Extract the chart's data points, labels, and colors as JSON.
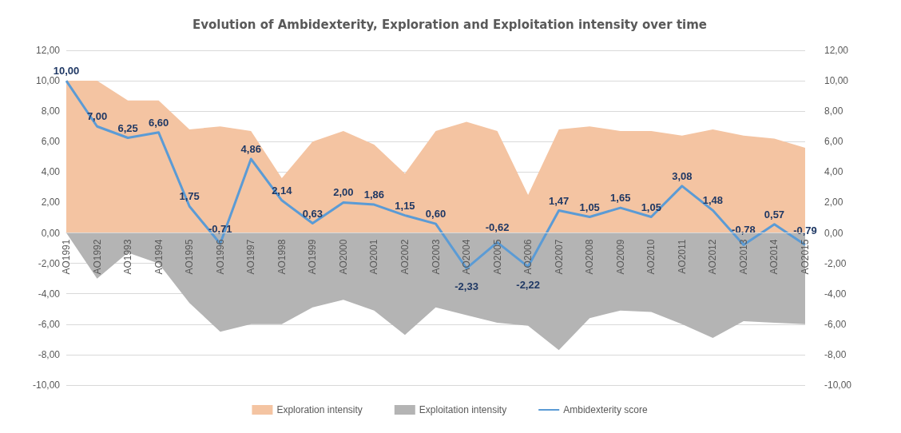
{
  "chart_data": {
    "type": "area",
    "title": "Evolution of Ambidexterity, Exploration and Exploitation intensity over time",
    "categories": [
      "AO1991",
      "AO1992",
      "AO1993",
      "AO1994",
      "AO1995",
      "AO1996",
      "AO1997",
      "AO1998",
      "AO1999",
      "AO2000",
      "AO2001",
      "AO2002",
      "AO2003",
      "AO2004",
      "AO2005",
      "AO2006",
      "AO2007",
      "AO2008",
      "AO2009",
      "AO2010",
      "AO2011",
      "AO2012",
      "AO2013",
      "AO2014",
      "AO2015"
    ],
    "series": [
      {
        "name": "Exploration intensity",
        "color": "#f4c4a2",
        "values": [
          10.0,
          10.0,
          8.7,
          8.7,
          6.8,
          7.0,
          6.7,
          3.6,
          6.0,
          6.7,
          5.8,
          3.9,
          6.7,
          7.3,
          6.7,
          2.5,
          6.8,
          7.0,
          6.7,
          6.7,
          6.4,
          6.8,
          6.4,
          6.2,
          5.6
        ]
      },
      {
        "name": "Exploitation intensity",
        "color": "#b4b4b4",
        "values": [
          0.0,
          -3.0,
          -1.3,
          -2.0,
          -4.6,
          -6.5,
          -6.0,
          -6.0,
          -4.9,
          -4.4,
          -5.1,
          -6.7,
          -4.9,
          -5.4,
          -5.9,
          -6.1,
          -7.7,
          -5.6,
          -5.1,
          -5.2,
          -6.0,
          -6.9,
          -5.8,
          -5.9,
          -6.0
        ]
      },
      {
        "name": "Ambidexterity score",
        "type": "line",
        "color": "#5b9bd5",
        "values": [
          10.0,
          7.0,
          6.25,
          6.6,
          1.75,
          -0.71,
          4.86,
          2.14,
          0.63,
          2.0,
          1.86,
          1.15,
          0.6,
          -2.33,
          -0.62,
          -2.22,
          1.47,
          1.05,
          1.65,
          1.05,
          3.08,
          1.48,
          -0.78,
          0.57,
          -0.79
        ],
        "value_labels": [
          "10,00",
          "7,00",
          "6,25",
          "6,60",
          "1,75",
          "-0,71",
          "4,86",
          "2,14",
          "0,63",
          "2,00",
          "1,86",
          "1,15",
          "0,60",
          "-2,33",
          "-0,62",
          "-2,22",
          "1,47",
          "1,05",
          "1,65",
          "1,05",
          "3,08",
          "1,48",
          "-0,78",
          "0,57",
          "-0,79"
        ]
      }
    ],
    "ylim": [
      -10,
      12
    ],
    "yticks": [
      {
        "value": -10,
        "label": "-10,00"
      },
      {
        "value": -8,
        "label": "-8,00"
      },
      {
        "value": -6,
        "label": "-6,00"
      },
      {
        "value": -4,
        "label": "-4,00"
      },
      {
        "value": -2,
        "label": "-2,00"
      },
      {
        "value": 0,
        "label": "0,00"
      },
      {
        "value": 2,
        "label": "2,00"
      },
      {
        "value": 4,
        "label": "4,00"
      },
      {
        "value": 6,
        "label": "6,00"
      },
      {
        "value": 8,
        "label": "8,00"
      },
      {
        "value": 10,
        "label": "10,00"
      },
      {
        "value": 12,
        "label": "12,00"
      }
    ],
    "y2lim": [
      -10,
      12
    ],
    "y2ticks": [
      {
        "value": -10,
        "label": "-10,00"
      },
      {
        "value": -8,
        "label": "-8,00"
      },
      {
        "value": -6,
        "label": "-6,00"
      },
      {
        "value": -4,
        "label": "-4,00"
      },
      {
        "value": -2,
        "label": "-2,00"
      },
      {
        "value": 0,
        "label": "0,00"
      },
      {
        "value": 2,
        "label": "2,00"
      },
      {
        "value": 4,
        "label": "4,00"
      },
      {
        "value": 6,
        "label": "6,00"
      },
      {
        "value": 8,
        "label": "8,00"
      },
      {
        "value": 10,
        "label": "10,00"
      },
      {
        "value": 12,
        "label": "12,00"
      }
    ],
    "grid": "y",
    "legend": "bottom"
  }
}
